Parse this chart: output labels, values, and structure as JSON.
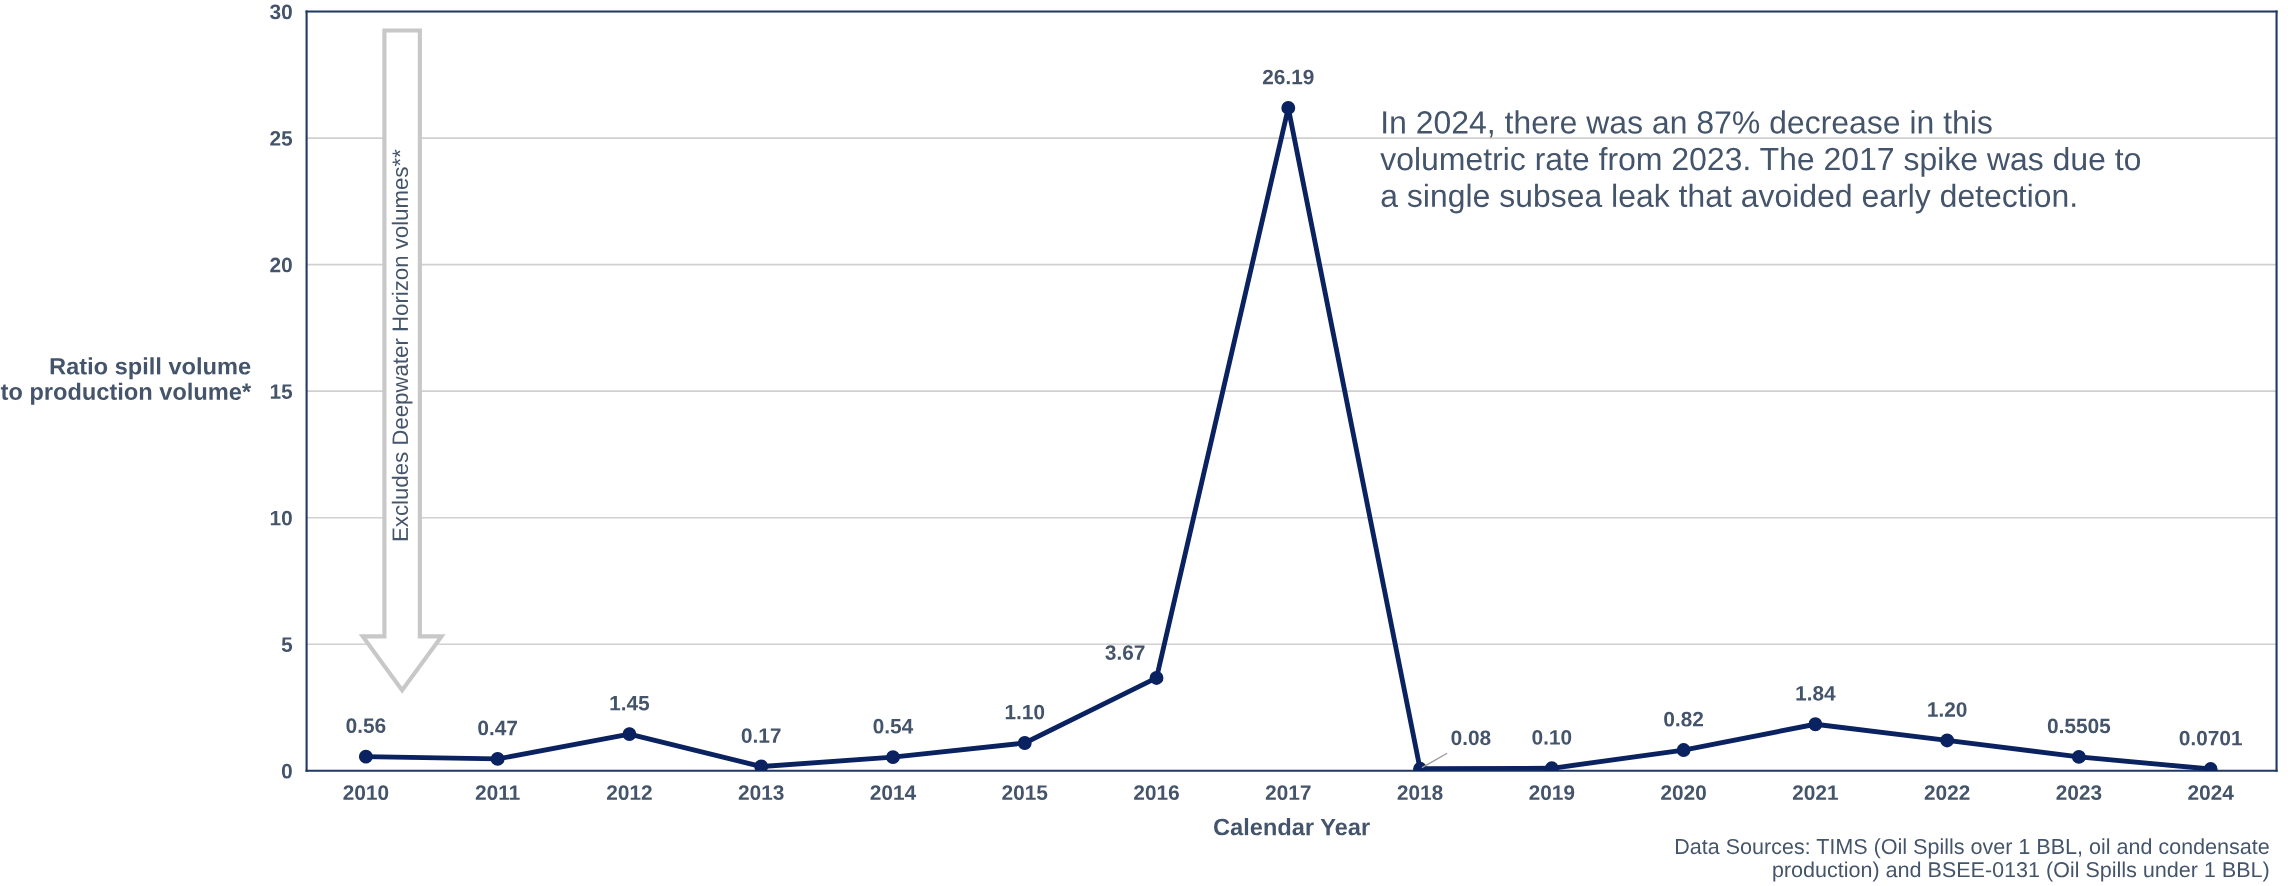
{
  "chart_data": {
    "type": "line",
    "xlabel": "Calendar Year",
    "ylabel": "Ratio spill volume\nto production volume*",
    "categories": [
      "2010",
      "2011",
      "2012",
      "2013",
      "2014",
      "2015",
      "2016",
      "2017",
      "2018",
      "2019",
      "2020",
      "2021",
      "2022",
      "2023",
      "2024"
    ],
    "series": [
      {
        "color": "#0b2260",
        "values": [
          0.56,
          0.47,
          1.45,
          0.17,
          0.54,
          1.1,
          3.67,
          26.19,
          0.08,
          0.1,
          0.82,
          1.84,
          1.2,
          0.5505,
          0.0701
        ],
        "value_labels": [
          "0.56",
          "0.47",
          "1.45",
          "0.17",
          "0.54",
          "1.10",
          "3.67",
          "26.19",
          "0.08",
          "0.10",
          "0.82",
          "1.84",
          "1.20",
          "0.5505",
          "0.0701"
        ]
      }
    ],
    "ylim": [
      0,
      30
    ],
    "yticks": [
      0,
      5,
      10,
      15,
      20,
      25,
      30
    ],
    "grid": "y",
    "marker": "circle",
    "line_style": "solid",
    "legend": false,
    "annotations": [
      "Excludes Deepwater Horizon volumes**",
      "In 2024, there was an 87% decrease in this\nvolumetric rate from 2023. The 2017 spike was due to\na single subsea leak that avoided early detection.",
      "Data Sources: TIMS (Oil Spills over 1 BBL, oil and condensate\nproduction) and BSEE-0131 (Oil Spills under 1 BBL)"
    ]
  }
}
